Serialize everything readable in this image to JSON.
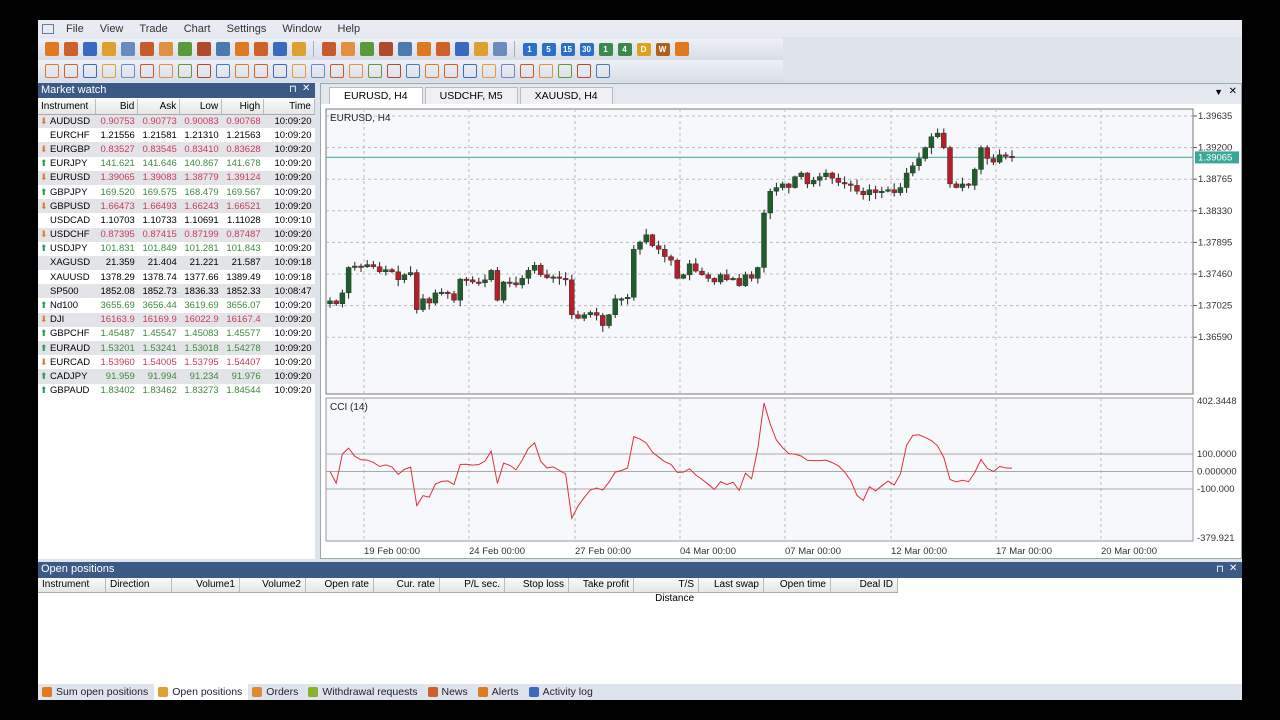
{
  "menu": [
    "File",
    "View",
    "Trade",
    "Chart",
    "Settings",
    "Window",
    "Help"
  ],
  "toolbar1": {
    "icons": [
      "connect-icon",
      "export-icon",
      "market-watch-icon",
      "settings-gear-icon",
      "new-chart-icon",
      "transfer-icon",
      "buy-icon",
      "sell-icon",
      "orders-icon",
      "positions-icon",
      "alerts-icon",
      "news-icon",
      "folder-open-icon",
      "folder-save-icon",
      "separator",
      "bar-chart-icon",
      "candlestick-chart-icon",
      "line-chart-icon",
      "zoom-in-icon",
      "zoom-out-icon",
      "scroll-icon",
      "autoscroll-icon",
      "indicators-icon",
      "crosshair-icon",
      "period-separators-icon"
    ],
    "timeframes": [
      {
        "label": "1",
        "color": "#2a6fc9"
      },
      {
        "label": "5",
        "color": "#2a6fc9"
      },
      {
        "label": "15",
        "color": "#2a6fc9"
      },
      {
        "label": "30",
        "color": "#2a6fc9"
      },
      {
        "label": "1",
        "color": "#3c8a4a"
      },
      {
        "label": "4",
        "color": "#3c8a4a"
      },
      {
        "label": "D",
        "color": "#e0a020"
      },
      {
        "label": "W",
        "color": "#b0601a"
      }
    ],
    "extra": [
      "monthly-chart-icon"
    ]
  },
  "toolbar2": {
    "icons": [
      "cursor-icon",
      "crosshair-tool-icon",
      "text-label-icon",
      "trendline-icon",
      "ray-icon",
      "horizontal-line-icon",
      "vertical-line-icon",
      "pencil-icon",
      "brush-icon",
      "channel-icon",
      "fibo-fan-icon",
      "parallel-lines-icon",
      "fibo-retracement-icon",
      "fibo-levels-icon",
      "fibo-arc-icon",
      "fibo-time-icon",
      "gann-icon",
      "andrews-icon",
      "regression-icon",
      "rectangle-icon",
      "triangle-icon",
      "ellipse-icon",
      "text-tool-icon",
      "label-tool-icon",
      "copy-icon",
      "alert-add-icon",
      "gear-disabled-icon",
      "expert-icon",
      "script-icon",
      "info-icon"
    ]
  },
  "market_watch": {
    "title": "Market watch",
    "columns": [
      "Instrument",
      "Bid",
      "Ask",
      "Low",
      "High",
      "Time"
    ],
    "rows": [
      {
        "dir": "down",
        "sym": "AUDUSD",
        "bid": "0.90753",
        "ask": "0.90773",
        "low": "0.90083",
        "high": "0.90768",
        "time": "10:09:20"
      },
      {
        "dir": "none",
        "sym": "EURCHF",
        "bid": "1.21556",
        "ask": "1.21581",
        "low": "1.21310",
        "high": "1.21563",
        "time": "10:09:20"
      },
      {
        "dir": "down",
        "sym": "EURGBP",
        "bid": "0.83527",
        "ask": "0.83545",
        "low": "0.83410",
        "high": "0.83628",
        "time": "10:09:20"
      },
      {
        "dir": "up",
        "sym": "EURJPY",
        "bid": "141.621",
        "ask": "141.646",
        "low": "140.867",
        "high": "141.678",
        "time": "10:09:20"
      },
      {
        "dir": "down",
        "sym": "EURUSD",
        "bid": "1.39065",
        "ask": "1.39083",
        "low": "1.38779",
        "high": "1.39124",
        "time": "10:09:20"
      },
      {
        "dir": "up",
        "sym": "GBPJPY",
        "bid": "169.520",
        "ask": "169.575",
        "low": "168.479",
        "high": "169.567",
        "time": "10:09:20"
      },
      {
        "dir": "down",
        "sym": "GBPUSD",
        "bid": "1.66473",
        "ask": "1.66493",
        "low": "1.66243",
        "high": "1.66521",
        "time": "10:09:20"
      },
      {
        "dir": "none",
        "sym": "USDCAD",
        "bid": "1.10703",
        "ask": "1.10733",
        "low": "1.10691",
        "high": "1.11028",
        "time": "10:09:10"
      },
      {
        "dir": "down",
        "sym": "USDCHF",
        "bid": "0.87395",
        "ask": "0.87415",
        "low": "0.87199",
        "high": "0.87487",
        "time": "10:09:20"
      },
      {
        "dir": "up",
        "sym": "USDJPY",
        "bid": "101.831",
        "ask": "101.849",
        "low": "101.281",
        "high": "101.843",
        "time": "10:09:20"
      },
      {
        "dir": "none",
        "sym": "XAGUSD",
        "bid": "21.359",
        "ask": "21.404",
        "low": "21.221",
        "high": "21.587",
        "time": "10:09:18"
      },
      {
        "dir": "none",
        "sym": "XAUUSD",
        "bid": "1378.29",
        "ask": "1378.74",
        "low": "1377.66",
        "high": "1389.49",
        "time": "10:09:18"
      },
      {
        "dir": "none",
        "sym": "SP500",
        "bid": "1852.08",
        "ask": "1852.73",
        "low": "1836.33",
        "high": "1852.33",
        "time": "10:08:47"
      },
      {
        "dir": "up",
        "sym": "Nd100",
        "bid": "3655.69",
        "ask": "3656.44",
        "low": "3619.69",
        "high": "3656.07",
        "time": "10:09:20"
      },
      {
        "dir": "down",
        "sym": "DJI",
        "bid": "16163.9",
        "ask": "16169.9",
        "low": "16022.9",
        "high": "16167.4",
        "time": "10:09:20"
      },
      {
        "dir": "up",
        "sym": "GBPCHF",
        "bid": "1.45487",
        "ask": "1.45547",
        "low": "1.45083",
        "high": "1.45577",
        "time": "10:09:20"
      },
      {
        "dir": "up",
        "sym": "EURAUD",
        "bid": "1.53201",
        "ask": "1.53241",
        "low": "1.53018",
        "high": "1.54278",
        "time": "10:09:20"
      },
      {
        "dir": "down",
        "sym": "EURCAD",
        "bid": "1.53960",
        "ask": "1.54005",
        "low": "1.53795",
        "high": "1.54407",
        "time": "10:09:20"
      },
      {
        "dir": "up",
        "sym": "CADJPY",
        "bid": "91.959",
        "ask": "91.994",
        "low": "91.234",
        "high": "91.976",
        "time": "10:09:20"
      },
      {
        "dir": "up",
        "sym": "GBPAUD",
        "bid": "1.83402",
        "ask": "1.83462",
        "low": "1.83273",
        "high": "1.84544",
        "time": "10:09:20"
      }
    ]
  },
  "colors": {
    "up": "#3d8a3d",
    "down": "#c93a5e",
    "bull": "#1f5e2a",
    "bear": "#b3202a",
    "cci": "#e0303a",
    "bid_line": "#5fb8a8"
  },
  "chart_tabs": [
    {
      "label": "EURUSD, H4",
      "active": true
    },
    {
      "label": "USDCHF, M5"
    },
    {
      "label": "XAUUSD, H4"
    }
  ],
  "chart": {
    "title": "EURUSD, H4",
    "current_price": "1.39065",
    "price_ticks": [
      "1.39635",
      "1.39200",
      "1.38765",
      "1.38330",
      "1.37895",
      "1.37460",
      "1.37025",
      "1.36590"
    ],
    "cci_title": "CCI (14)",
    "cci_ticks": [
      "402.3448",
      "100.0000",
      "0.000000",
      "-100.000",
      "-379.921"
    ],
    "date_ticks": [
      "19 Feb 00:00",
      "24 Feb 00:00",
      "27 Feb 00:00",
      "04 Mar 00:00",
      "07 Mar 00:00",
      "12 Mar 00:00",
      "17 Mar 00:00",
      "20 Mar 00:00"
    ]
  },
  "chart_data": {
    "type": "candlestick",
    "symbol": "EURUSD",
    "timeframe": "H4",
    "ylim": [
      1.364,
      1.3985
    ],
    "closes": [
      1.3709,
      1.3705,
      1.372,
      1.3755,
      1.3757,
      1.3756,
      1.3759,
      1.3756,
      1.3749,
      1.3752,
      1.3749,
      1.3738,
      1.3745,
      1.3748,
      1.3697,
      1.3712,
      1.3706,
      1.372,
      1.3721,
      1.3719,
      1.371,
      1.3739,
      1.3738,
      1.3735,
      1.3734,
      1.3738,
      1.3751,
      1.371,
      1.3735,
      1.3734,
      1.3731,
      1.374,
      1.3751,
      1.3758,
      1.3745,
      1.3741,
      1.3742,
      1.374,
      1.3738,
      1.369,
      1.3685,
      1.369,
      1.3693,
      1.3689,
      1.3675,
      1.369,
      1.3712,
      1.3712,
      1.3714,
      1.378,
      1.379,
      1.38,
      1.3785,
      1.378,
      1.377,
      1.3765,
      1.374,
      1.3745,
      1.376,
      1.375,
      1.3745,
      1.374,
      1.3735,
      1.3745,
      1.3738,
      1.374,
      1.373,
      1.3745,
      1.374,
      1.3755,
      1.383,
      1.386,
      1.3865,
      1.387,
      1.3865,
      1.388,
      1.3885,
      1.387,
      1.3875,
      1.388,
      1.3885,
      1.3878,
      1.3872,
      1.387,
      1.3868,
      1.386,
      1.3855,
      1.3862,
      1.3858,
      1.386,
      1.3862,
      1.3858,
      1.3865,
      1.3885,
      1.3895,
      1.3905,
      1.392,
      1.3935,
      1.394,
      1.392,
      1.387,
      1.3865,
      1.387,
      1.3868,
      1.389,
      1.392,
      1.3905,
      1.39,
      1.391,
      1.3908,
      1.3906
    ],
    "cci_range": [
      -379.921,
      402.3448
    ]
  },
  "open_positions": {
    "title": "Open positions",
    "columns": [
      "Instrument",
      "Direction",
      "Volume1",
      "Volume2",
      "Open rate",
      "Cur. rate",
      "P/L sec.",
      "Stop loss",
      "Take profit",
      "T/S Distance",
      "Last swap",
      "Open time",
      "Deal ID"
    ]
  },
  "bottom_tabs": [
    {
      "label": "Sum open positions",
      "icon": "sum-positions-icon",
      "color": "#e07a20"
    },
    {
      "label": "Open positions",
      "icon": "open-positions-icon",
      "color": "#e0a030",
      "active": true
    },
    {
      "label": "Orders",
      "icon": "orders-icon",
      "color": "#e08a30"
    },
    {
      "label": "Withdrawal requests",
      "icon": "withdrawal-icon",
      "color": "#8ab030"
    },
    {
      "label": "News",
      "icon": "news-icon",
      "color": "#d0602a"
    },
    {
      "label": "Alerts",
      "icon": "alerts-icon",
      "color": "#e07a20"
    },
    {
      "label": "Activity log",
      "icon": "activity-log-icon",
      "color": "#3a6ac0"
    }
  ]
}
